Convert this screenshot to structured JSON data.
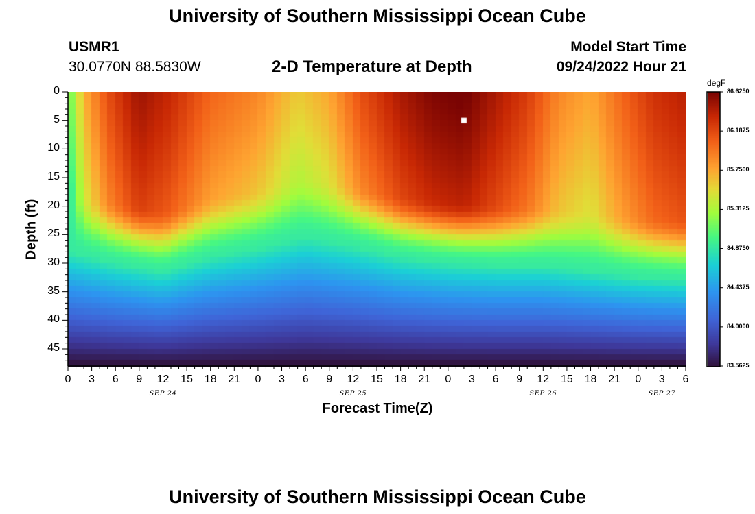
{
  "page": {
    "title_top": "University of Southern Mississippi Ocean Cube",
    "title_bottom": "University of Southern Mississippi Ocean Cube"
  },
  "header": {
    "station": "USMR1",
    "coords": "30.0770N  88.5830W",
    "plot_title": "2-D Temperature at Depth",
    "model_label": "Model Start Time",
    "model_time": "09/24/2022 Hour 21"
  },
  "chart_data": {
    "type": "heatmap",
    "title": "2-D Temperature at Depth",
    "xlabel": "Forecast Time(Z)",
    "ylabel": "Depth (ft)",
    "units": "degF",
    "x_range_hours": [
      0,
      78
    ],
    "ylim": [
      0,
      48
    ],
    "x_ticks": [
      "0",
      "3",
      "6",
      "9",
      "12",
      "15",
      "18",
      "21",
      "0",
      "3",
      "6",
      "9",
      "12",
      "15",
      "18",
      "21",
      "0",
      "3",
      "6",
      "9",
      "12",
      "15",
      "18",
      "21",
      "0",
      "3",
      "6"
    ],
    "y_ticks": [
      "0",
      "5",
      "10",
      "15",
      "20",
      "25",
      "30",
      "35",
      "40",
      "45"
    ],
    "y_tick_values": [
      0,
      5,
      10,
      15,
      20,
      25,
      30,
      35,
      40,
      45
    ],
    "date_labels": [
      {
        "text": "SEP 24",
        "hour": 12
      },
      {
        "text": "SEP 25",
        "hour": 36
      },
      {
        "text": "SEP 26",
        "hour": 60
      },
      {
        "text": "SEP 27",
        "hour": 75
      }
    ],
    "colorbar": {
      "unit": "degF",
      "min": 83.5625,
      "max": 86.625,
      "levels": [
        "86.6250",
        "86.1875",
        "85.7500",
        "85.3125",
        "84.8750",
        "84.4375",
        "84.0000",
        "83.5625"
      ],
      "level_values": [
        86.625,
        86.1875,
        85.75,
        85.3125,
        84.875,
        84.4375,
        84.0,
        83.5625
      ]
    },
    "marker": {
      "hour": 50,
      "depth": 5
    }
  }
}
